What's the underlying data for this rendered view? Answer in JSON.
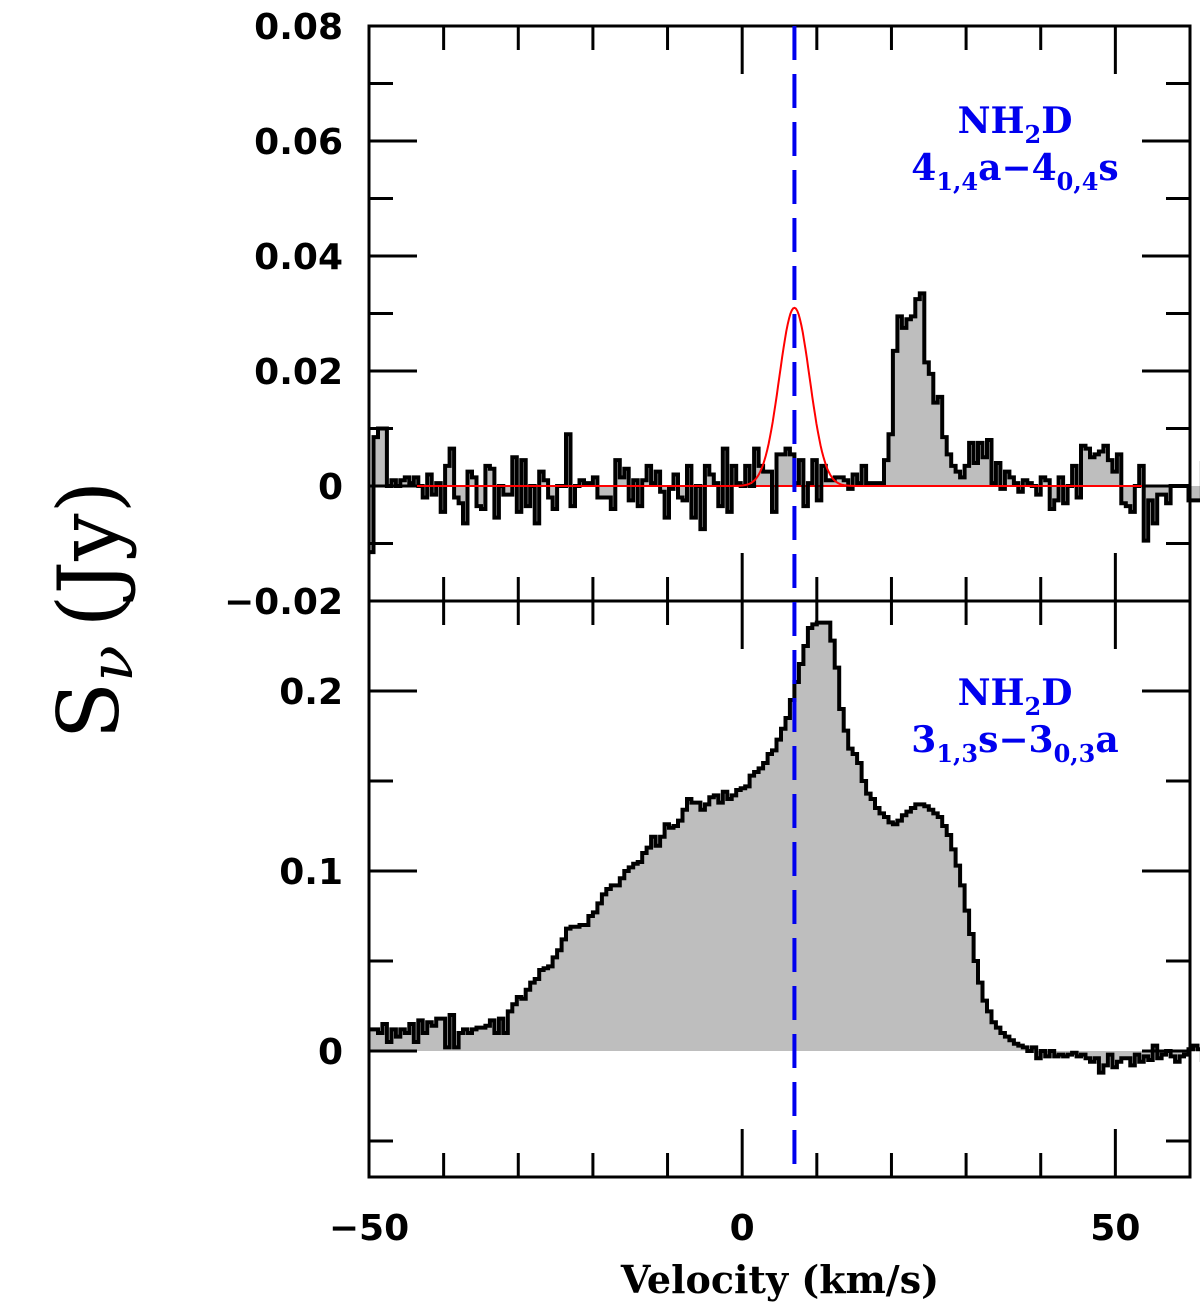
{
  "chart_data": {
    "type": "step",
    "xlabel": "Velocity (km/s)",
    "ylabel": "S",
    "ylabel_sub": "ν",
    "ylabel_unit": "(Jy)",
    "xlim": [
      -50,
      60
    ],
    "x_ticks": [
      -50,
      0,
      50
    ],
    "x_tick_labels": [
      "−50",
      "0",
      "50"
    ],
    "x_minor_step": 10,
    "reference_velocity": 7,
    "reference_line_color": "#0000ee",
    "fill_color": "#bebebe",
    "fit_color": "#ff0000",
    "panels": [
      {
        "id": "top",
        "ylim": [
          -0.02,
          0.08
        ],
        "y_ticks": [
          -0.02,
          0,
          0.02,
          0.04,
          0.06,
          0.08
        ],
        "y_tick_labels": [
          "−0.02",
          "0",
          "0.02",
          "0.04",
          "0.06",
          "0.08"
        ],
        "y_minor_step": 0.01,
        "annotation": {
          "line1": "NH",
          "line1_sub": "2",
          "line1_end": "D",
          "l2a": "4",
          "l2b": "1,4",
          "l2c": "a−4",
          "l2d": "0,4",
          "l2e": "s"
        },
        "spectrum": {
          "x_start": -50,
          "channel_width": 0.6,
          "values": [
            -0.0115,
            0.0085,
            0.01,
            0.01,
            0.0,
            0.001,
            0.0,
            0.001,
            0.0015,
            0.0005,
            0.0015,
            0.0,
            -0.002,
            0.002,
            -0.0015,
            0.0005,
            -0.0045,
            0.0035,
            0.0065,
            -0.002,
            -0.003,
            -0.0065,
            0.0025,
            0.0015,
            -0.0035,
            -0.004,
            0.0035,
            0.003,
            -0.0055,
            0.0,
            -0.0015,
            -0.0015,
            0.005,
            -0.0045,
            0.0045,
            -0.0035,
            0.0,
            -0.0065,
            0.0025,
            0.001,
            -0.002,
            -0.004,
            0.0,
            0.0,
            0.009,
            -0.0035,
            0.0,
            0.001,
            0.0005,
            0.0005,
            0.0015,
            -0.002,
            -0.002,
            -0.002,
            -0.004,
            0.0045,
            0.0015,
            0.003,
            -0.0025,
            0.001,
            -0.0035,
            0.001,
            0.0035,
            0.0005,
            0.0025,
            -0.001,
            -0.0055,
            -0.0005,
            0.002,
            -0.002,
            -0.0025,
            0.0035,
            -0.0055,
            0.0,
            -0.0075,
            0.0035,
            0.002,
            0.0005,
            -0.0035,
            0.0065,
            -0.0045,
            0.0035,
            0.0005,
            0.0,
            0.0035,
            0.0,
            0.0065,
            0.0035,
            0.0025,
            0.0025,
            -0.0045,
            0.0055,
            0.0055,
            0.0065,
            0.0055,
            0.0005,
            0.0045,
            -0.0035,
            0.0005,
            0.0045,
            -0.0025,
            0.0035,
            0.001,
            0.001,
            0.0015,
            0.0015,
            0.001,
            -0.0005,
            0.002,
            0.0005,
            0.0035,
            0.0005,
            0.0005,
            0.0005,
            0.0005,
            0.0045,
            0.009,
            0.0235,
            0.0295,
            0.0275,
            0.029,
            0.0295,
            0.0325,
            0.0335,
            0.0215,
            0.0195,
            0.0145,
            0.0155,
            0.0085,
            0.0055,
            0.0035,
            0.0025,
            0.0015,
            0.0035,
            0.0075,
            0.004,
            0.0075,
            0.005,
            0.008,
            0.0005,
            0.004,
            -0.0005,
            0.0025,
            0.0015,
            0.0005,
            -0.001,
            0.001,
            0.0005,
            0.0,
            -0.0015,
            0.0015,
            0.001,
            -0.004,
            -0.0025,
            0.0015,
            -0.003,
            0.0,
            0.0035,
            -0.002,
            0.007,
            0.0065,
            0.005,
            0.0055,
            0.006,
            0.007,
            0.0045,
            0.0025,
            0.0055,
            -0.003,
            -0.0035,
            -0.0045,
            0.0,
            0.0035,
            -0.0095,
            -0.0025,
            -0.0065,
            -0.0015,
            -0.0015,
            -0.003,
            0.0,
            0.0,
            0.0,
            0.0,
            -0.0025,
            -0.0025,
            -0.0025,
            0.004,
            0.0005,
            0.0045,
            -0.0025,
            0.0005,
            0.0015,
            0.0025,
            -0.0045,
            0.007,
            0.0045,
            0.0045,
            0.0035,
            -0.0095,
            0.0055,
            -0.0035,
            -0.0035,
            -0.0035,
            0.0025,
            0.0065,
            -0.0045,
            0.0065,
            0.0045,
            0.0085,
            -0.0005,
            0.0085,
            -0.0015,
            0.0095,
            0.0095,
            0.0105,
            0.0105
          ]
        },
        "gaussian_fit": {
          "amplitude": 0.031,
          "center": 7.0,
          "fwhm": 4.8
        }
      },
      {
        "id": "bottom",
        "ylim": [
          -0.07,
          0.25
        ],
        "y_ticks": [
          0,
          0.1,
          0.2
        ],
        "y_tick_labels": [
          "0",
          "0.1",
          "0.2"
        ],
        "y_minor_step": 0.05,
        "annotation": {
          "line1": "NH",
          "line1_sub": "2",
          "line1_end": "D",
          "l2a": "3",
          "l2b": "1,3",
          "l2c": "s−3",
          "l2d": "0,3",
          "l2e": "a"
        },
        "spectrum": {
          "x_start": -50,
          "channel_width": 0.6,
          "values": [
            0.012,
            0.012,
            0.01,
            0.015,
            0.005,
            0.012,
            0.008,
            0.012,
            0.01,
            0.015,
            0.005,
            0.017,
            0.01,
            0.016,
            0.014,
            0.018,
            0.018,
            0.002,
            0.02,
            0.002,
            0.01,
            0.012,
            0.01,
            0.012,
            0.013,
            0.013,
            0.014,
            0.017,
            0.01,
            0.018,
            0.01,
            0.022,
            0.026,
            0.03,
            0.029,
            0.034,
            0.038,
            0.04,
            0.045,
            0.046,
            0.047,
            0.052,
            0.056,
            0.062,
            0.068,
            0.069,
            0.069,
            0.07,
            0.07,
            0.075,
            0.077,
            0.082,
            0.087,
            0.09,
            0.092,
            0.092,
            0.096,
            0.1,
            0.102,
            0.104,
            0.105,
            0.11,
            0.113,
            0.119,
            0.114,
            0.119,
            0.126,
            0.124,
            0.125,
            0.128,
            0.134,
            0.14,
            0.138,
            0.138,
            0.134,
            0.137,
            0.141,
            0.142,
            0.138,
            0.144,
            0.14,
            0.142,
            0.145,
            0.146,
            0.147,
            0.153,
            0.155,
            0.157,
            0.16,
            0.165,
            0.167,
            0.173,
            0.179,
            0.185,
            0.195,
            0.205,
            0.215,
            0.225,
            0.235,
            0.237,
            0.238,
            0.238,
            0.238,
            0.228,
            0.213,
            0.19,
            0.178,
            0.168,
            0.165,
            0.16,
            0.15,
            0.143,
            0.14,
            0.135,
            0.132,
            0.13,
            0.127,
            0.126,
            0.128,
            0.131,
            0.133,
            0.135,
            0.137,
            0.137,
            0.136,
            0.134,
            0.132,
            0.13,
            0.125,
            0.12,
            0.112,
            0.103,
            0.092,
            0.078,
            0.065,
            0.05,
            0.038,
            0.028,
            0.022,
            0.016,
            0.013,
            0.01,
            0.008,
            0.006,
            0.004,
            0.003,
            0.002,
            0.0,
            0.002,
            -0.004,
            0.0,
            -0.003,
            0.0,
            -0.003,
            -0.002,
            -0.003,
            -0.002,
            -0.001,
            -0.003,
            -0.002,
            -0.004,
            -0.006,
            -0.004,
            -0.012,
            -0.008,
            -0.002,
            -0.009,
            -0.006,
            -0.004,
            -0.004,
            -0.008,
            -0.002,
            -0.006,
            -0.003,
            -0.005,
            0.003,
            -0.004,
            -0.002,
            0.0,
            -0.003,
            -0.006,
            -0.003,
            -0.002,
            0.001,
            0.003,
            0.001,
            -0.005,
            0.003,
            0.0,
            -0.003,
            -0.004,
            0.002,
            -0.002,
            0.0,
            -0.003,
            0.003,
            -0.002,
            0.0,
            -0.002,
            0.004,
            0.0,
            -0.002,
            -0.003,
            0.0,
            0.001,
            0.0,
            -0.005,
            0.001,
            0.0,
            0.0,
            -0.002,
            -0.003,
            -0.005,
            -0.002,
            -0.003,
            0.0,
            -0.003,
            -0.006,
            0.003,
            -0.001,
            -0.005,
            -0.005,
            -0.005,
            0.002,
            0.0,
            -0.004,
            -0.008,
            -0.002,
            -0.008,
            -0.006,
            -0.003,
            0.0
          ]
        }
      }
    ]
  }
}
